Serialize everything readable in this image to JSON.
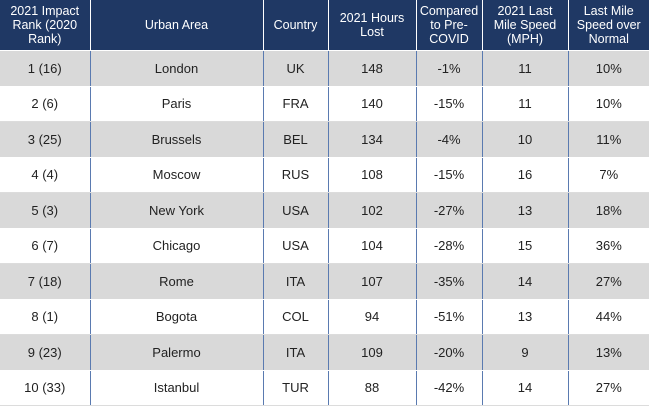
{
  "table": {
    "headers": [
      "2021 Impact Rank (2020 Rank)",
      "Urban Area",
      "Country",
      "2021 Hours Lost",
      "Compared to Pre-COVID",
      "2021 Last Mile Speed  (MPH)",
      "Last Mile Speed over Normal"
    ],
    "rows": [
      [
        "1 (16)",
        "London",
        "UK",
        "148",
        "-1%",
        "11",
        "10%"
      ],
      [
        "2 (6)",
        "Paris",
        "FRA",
        "140",
        "-15%",
        "11",
        "10%"
      ],
      [
        "3 (25)",
        "Brussels",
        "BEL",
        "134",
        "-4%",
        "10",
        "11%"
      ],
      [
        "4 (4)",
        "Moscow",
        "RUS",
        "108",
        "-15%",
        "16",
        "7%"
      ],
      [
        "5 (3)",
        "New York",
        "USA",
        "102",
        "-27%",
        "13",
        "18%"
      ],
      [
        "6 (7)",
        "Chicago",
        "USA",
        "104",
        "-28%",
        "15",
        "36%"
      ],
      [
        "7 (18)",
        "Rome",
        "ITA",
        "107",
        "-35%",
        "14",
        "27%"
      ],
      [
        "8 (1)",
        "Bogota",
        "COL",
        "94",
        "-51%",
        "13",
        "44%"
      ],
      [
        "9 (23)",
        "Palermo",
        "ITA",
        "109",
        "-20%",
        "9",
        "13%"
      ],
      [
        "10 (33)",
        "Istanbul",
        "TUR",
        "88",
        "-42%",
        "14",
        "27%"
      ]
    ]
  }
}
